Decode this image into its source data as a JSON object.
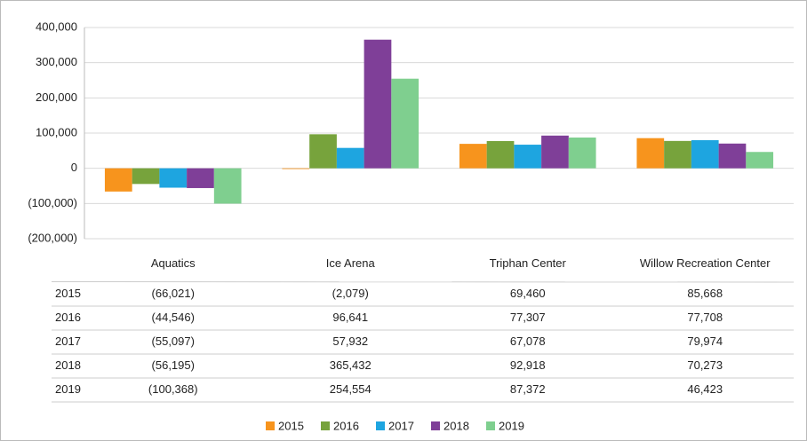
{
  "chart_data": {
    "type": "bar",
    "categories": [
      "Aquatics",
      "Ice Arena",
      "Triphan Center",
      "Willow Recreation Center"
    ],
    "series": [
      {
        "name": "2015",
        "color": "#f7941d",
        "values": [
          -66021,
          -2079,
          69460,
          85668
        ],
        "value_labels": [
          "(66,021)",
          "(2,079)",
          "69,460",
          "85,668"
        ]
      },
      {
        "name": "2016",
        "color": "#77a33c",
        "values": [
          -44546,
          96641,
          77307,
          77708
        ],
        "value_labels": [
          "(44,546)",
          "96,641",
          "77,307",
          "77,708"
        ]
      },
      {
        "name": "2017",
        "color": "#1ea5e0",
        "values": [
          -55097,
          57932,
          67078,
          79974
        ],
        "value_labels": [
          "(55,097)",
          "57,932",
          "67,078",
          "79,974"
        ]
      },
      {
        "name": "2018",
        "color": "#7f3f98",
        "values": [
          -56195,
          365432,
          92918,
          70273
        ],
        "value_labels": [
          "(56,195)",
          "365,432",
          "92,918",
          "70,273"
        ]
      },
      {
        "name": "2019",
        "color": "#7fcf8f",
        "values": [
          -100368,
          254554,
          87372,
          46423
        ],
        "value_labels": [
          "(100,368)",
          "254,554",
          "87,372",
          "46,423"
        ]
      }
    ],
    "ylim": [
      -200000,
      400000
    ],
    "yticks": [
      {
        "value": -200000,
        "label": "(200,000)"
      },
      {
        "value": -100000,
        "label": "(100,000)"
      },
      0,
      {
        "value": 100000,
        "label": "100,000"
      },
      {
        "value": 200000,
        "label": "200,000"
      },
      {
        "value": 300000,
        "label": "300,000"
      },
      {
        "value": 400000,
        "label": "400,000"
      }
    ],
    "grid": true,
    "legend": "bottom"
  }
}
